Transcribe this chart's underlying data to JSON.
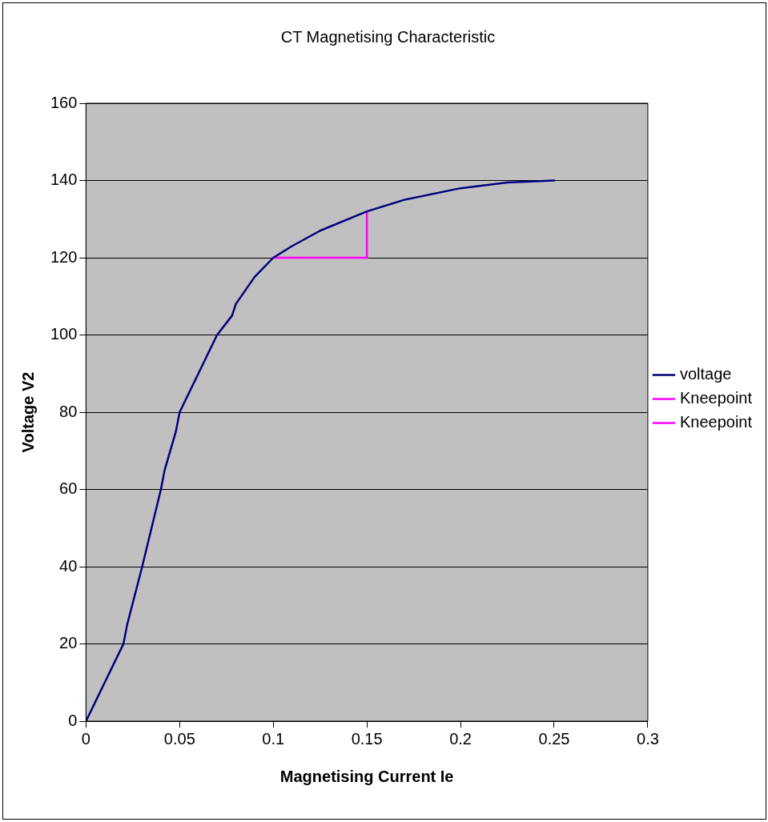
{
  "chart_data": {
    "type": "line",
    "title": "CT Magnetising Characteristic",
    "xlabel": "Magnetising Current Ie",
    "ylabel": "Voltage V2",
    "xlim": [
      0,
      0.3
    ],
    "xticks": [
      0,
      0.05,
      0.1,
      0.15,
      0.2,
      0.25,
      0.3
    ],
    "ylim": [
      0,
      160
    ],
    "yticks": [
      0,
      20,
      40,
      60,
      80,
      100,
      120,
      140,
      160
    ],
    "grid": "y",
    "legend": "right",
    "marker": "none",
    "line_style": "solid",
    "series": [
      {
        "name": "voltage",
        "color": "#000080",
        "x": [
          0,
          0.005,
          0.01,
          0.015,
          0.02,
          0.022,
          0.03,
          0.04,
          0.042,
          0.048,
          0.05,
          0.06,
          0.07,
          0.078,
          0.08,
          0.09,
          0.1,
          0.11,
          0.125,
          0.15,
          0.17,
          0.2,
          0.225,
          0.25
        ],
        "values": [
          0,
          5,
          10,
          15,
          20,
          25,
          40,
          60,
          65,
          75,
          80,
          90,
          100,
          105,
          108,
          115,
          120,
          123,
          127,
          132,
          135,
          138,
          139.5,
          140
        ]
      },
      {
        "name": "Kneepoint",
        "color": "#ff00ff",
        "x": [
          0.1,
          0.15
        ],
        "values": [
          120,
          120
        ]
      },
      {
        "name": "Kneepoint",
        "color": "#ff00ff",
        "x": [
          0.15,
          0.15
        ],
        "values": [
          120,
          132
        ]
      }
    ]
  }
}
